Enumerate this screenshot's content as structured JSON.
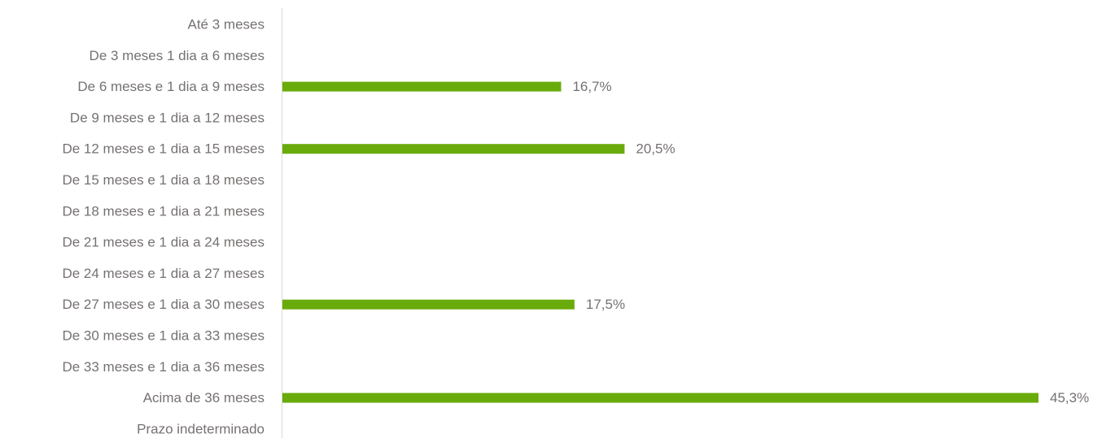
{
  "chart_data": {
    "type": "hbar",
    "categories": [
      "Até 3 meses",
      "De 3 meses 1 dia a 6 meses",
      "De 6 meses e 1 dia a 9 meses",
      "De 9 meses e 1 dia a 12 meses",
      "De 12 meses e 1 dia a 15 meses",
      "De 15 meses e 1 dia a 18 meses",
      "De 18 meses e 1 dia a 21 meses",
      "De 21 meses e 1 dia a 24 meses",
      "De 24 meses e 1 dia a 27 meses",
      "De 27 meses e 1 dia a 30 meses",
      "De 30 meses e 1 dia a 33 meses",
      "De 33 meses e 1 dia a 36 meses",
      "Acima de 36 meses",
      "Prazo indeterminado"
    ],
    "values": [
      null,
      null,
      16.7,
      null,
      20.5,
      null,
      null,
      null,
      null,
      17.5,
      null,
      null,
      45.3,
      null
    ],
    "value_labels": [
      null,
      null,
      "16,7%",
      null,
      "20,5%",
      null,
      null,
      null,
      null,
      "17,5%",
      null,
      null,
      "45,3%",
      null
    ],
    "color": "#6aab0c"
  }
}
